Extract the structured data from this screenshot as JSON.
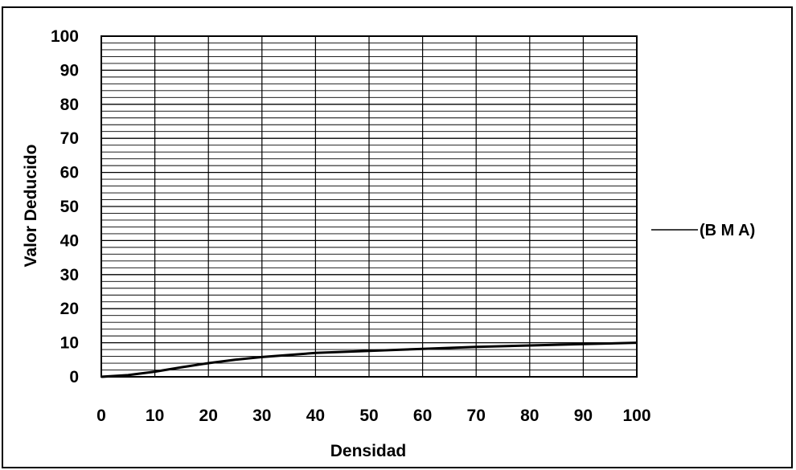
{
  "chart_data": {
    "type": "line",
    "title": "",
    "xlabel": "Densidad",
    "ylabel": "Valor Deducido",
    "xlim": [
      0,
      100
    ],
    "ylim": [
      0,
      100
    ],
    "x_ticks": [
      "0",
      "10",
      "20",
      "30",
      "40",
      "50",
      "60",
      "70",
      "80",
      "90",
      "100"
    ],
    "y_ticks": [
      "0",
      "10",
      "20",
      "30",
      "40",
      "50",
      "60",
      "70",
      "80",
      "90",
      "100"
    ],
    "grid": true,
    "legend_position": "right",
    "series": [
      {
        "name": "(B M A)",
        "color": "#000000",
        "x": [
          0,
          5,
          10,
          15,
          20,
          25,
          30,
          40,
          50,
          60,
          70,
          80,
          90,
          100
        ],
        "y": [
          0,
          0.5,
          1.5,
          2.8,
          4,
          5,
          5.8,
          7,
          7.6,
          8.2,
          8.8,
          9.2,
          9.6,
          10
        ]
      }
    ]
  }
}
